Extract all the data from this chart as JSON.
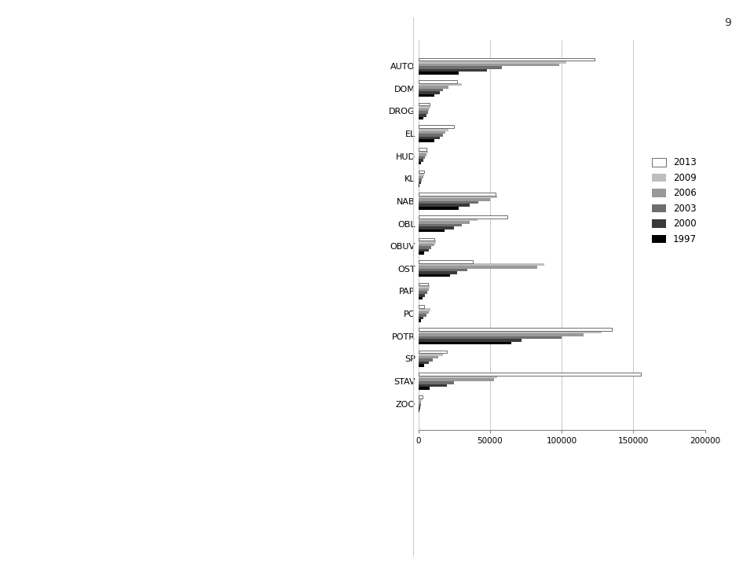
{
  "categories": [
    "ZOO",
    "STAV",
    "SP",
    "POTR",
    "PC",
    "PAP",
    "OST",
    "OBUV",
    "OBL",
    "NAB",
    "KL",
    "HUD",
    "EL",
    "DROG",
    "DOM",
    "AUTO"
  ],
  "years": [
    "1997",
    "2000",
    "2003",
    "2006",
    "2009",
    "2013"
  ],
  "colors": [
    "#000000",
    "#3a3a3a",
    "#6e6e6e",
    "#999999",
    "#bebebe",
    "#ffffff"
  ],
  "edge_colors": [
    "none",
    "none",
    "none",
    "none",
    "none",
    "#555555"
  ],
  "data": {
    "ZOO": [
      800,
      1000,
      1500,
      2000,
      2500,
      3000
    ],
    "STAV": [
      8000,
      20000,
      25000,
      53000,
      55000,
      155000
    ],
    "SP": [
      4000,
      7000,
      10000,
      14000,
      17000,
      20000
    ],
    "POTR": [
      65000,
      72000,
      100000,
      115000,
      128000,
      135000
    ],
    "PC": [
      1500,
      3500,
      5500,
      7500,
      8500,
      4000
    ],
    "PAP": [
      3000,
      4500,
      6000,
      7000,
      8000,
      6500
    ],
    "OST": [
      22000,
      27000,
      34000,
      83000,
      88000,
      38000
    ],
    "OBUV": [
      4000,
      7000,
      9000,
      11000,
      12000,
      11000
    ],
    "OBL": [
      18000,
      25000,
      30000,
      36000,
      41000,
      62000
    ],
    "NAB": [
      28000,
      36000,
      42000,
      50000,
      55000,
      54000
    ],
    "KL": [
      800,
      1500,
      2500,
      3500,
      4000,
      3800
    ],
    "HUD": [
      1800,
      3500,
      4500,
      5500,
      6500,
      5500
    ],
    "EL": [
      11000,
      15000,
      17000,
      19000,
      21000,
      25000
    ],
    "DROG": [
      3500,
      5500,
      6500,
      7500,
      8500,
      8000
    ],
    "DOM": [
      11000,
      15000,
      17000,
      21000,
      30000,
      27000
    ],
    "AUTO": [
      28000,
      48000,
      58000,
      98000,
      103000,
      123000
    ]
  },
  "xlim": [
    0,
    200000
  ],
  "xticks": [
    0,
    50000,
    100000,
    150000,
    200000
  ],
  "xtick_labels": [
    "0",
    "50000",
    "100000",
    "150000",
    "200000"
  ],
  "legend_labels": [
    "2013",
    "2009",
    "2006",
    "2003",
    "2000",
    "1997"
  ],
  "page_number": "9",
  "background_color": "#ffffff",
  "grid_color": "#c8c8c8",
  "figwidth": 9.6,
  "figheight": 7.29,
  "dpi": 100
}
